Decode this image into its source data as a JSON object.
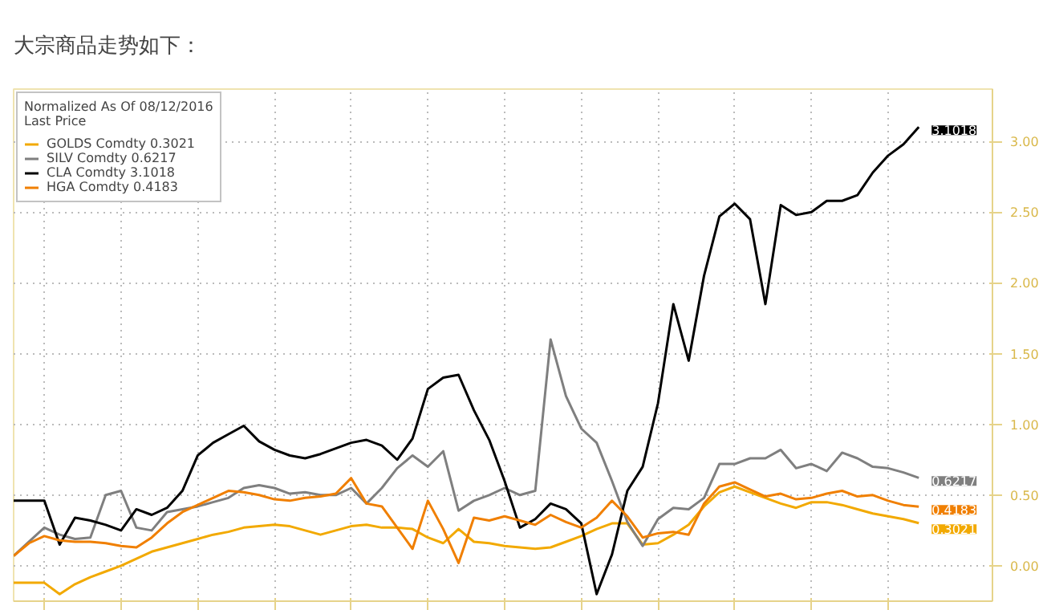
{
  "chart_data": {
    "type": "line",
    "title": "大宗商品走势如下：",
    "legend_title": "Normalized As Of 08/12/2016\nLast Price",
    "legend": "top left",
    "grid": true,
    "tick_labels": "y",
    "line_style": "solid",
    "categories": [
      null,
      null,
      null,
      null,
      null,
      null,
      null,
      null,
      null,
      null,
      null,
      null,
      null,
      null,
      null,
      null,
      null,
      null,
      null,
      null,
      null,
      null,
      null,
      null,
      null,
      null,
      null,
      null,
      null,
      null,
      null,
      null,
      null,
      null,
      null,
      null,
      null,
      null,
      null,
      null,
      null,
      null,
      null,
      null,
      null,
      null,
      null,
      null,
      null,
      null,
      null,
      null,
      null,
      null,
      null,
      null,
      null,
      null,
      null,
      null
    ],
    "ylim": [
      -0.25,
      3.37
    ],
    "yticks": [
      "0.00",
      "0.50",
      "1.00",
      "1.50",
      "2.00",
      "2.50",
      "3.00"
    ],
    "series": [
      {
        "name": "GOLDS Comdty 0.3021",
        "color": "#f2a900",
        "values": [
          -0.12,
          -0.12,
          -0.12,
          -0.2,
          -0.13,
          -0.08,
          -0.04,
          0.0,
          0.05,
          0.1,
          0.13,
          0.16,
          0.19,
          0.22,
          0.24,
          0.27,
          0.28,
          0.29,
          0.28,
          0.25,
          0.22,
          0.25,
          0.28,
          0.29,
          0.27,
          0.27,
          0.26,
          0.2,
          0.16,
          0.26,
          0.17,
          0.16,
          0.14,
          0.13,
          0.12,
          0.13,
          0.17,
          0.21,
          0.26,
          0.3,
          0.3,
          0.15,
          0.16,
          0.22,
          0.29,
          0.42,
          0.52,
          0.56,
          0.52,
          0.48,
          0.44,
          0.41,
          0.45,
          0.45,
          0.43,
          0.4,
          0.37,
          0.35,
          0.33,
          0.3021
        ],
        "value_labels": [
          null,
          null,
          null,
          null,
          null,
          null,
          null,
          null,
          null,
          null,
          null,
          null,
          null,
          null,
          null,
          null,
          null,
          null,
          null,
          null,
          null,
          null,
          null,
          null,
          null,
          null,
          null,
          null,
          null,
          null,
          null,
          null,
          null,
          null,
          null,
          null,
          null,
          null,
          null,
          null,
          null,
          null,
          null,
          null,
          null,
          null,
          null,
          null,
          null,
          null,
          null,
          null,
          null,
          null,
          null,
          null,
          null,
          null,
          null,
          "0.3021"
        ]
      },
      {
        "name": "SILV Comdty 0.6217",
        "color": "#7f7f7f",
        "values": [
          0.07,
          0.17,
          0.27,
          0.22,
          0.19,
          0.2,
          0.5,
          0.53,
          0.27,
          0.25,
          0.38,
          0.4,
          0.42,
          0.45,
          0.48,
          0.55,
          0.57,
          0.55,
          0.51,
          0.52,
          0.5,
          0.5,
          0.55,
          0.44,
          0.55,
          0.69,
          0.78,
          0.7,
          0.81,
          0.39,
          0.46,
          0.5,
          0.55,
          0.5,
          0.53,
          1.6,
          1.2,
          0.97,
          0.87,
          0.6,
          0.31,
          0.14,
          0.33,
          0.41,
          0.4,
          0.48,
          0.72,
          0.72,
          0.76,
          0.76,
          0.82,
          0.69,
          0.72,
          0.67,
          0.8,
          0.76,
          0.7,
          0.69,
          0.66,
          0.6217
        ],
        "value_labels": [
          null,
          null,
          null,
          null,
          null,
          null,
          null,
          null,
          null,
          null,
          null,
          null,
          null,
          null,
          null,
          null,
          null,
          null,
          null,
          null,
          null,
          null,
          null,
          null,
          null,
          null,
          null,
          null,
          null,
          null,
          null,
          null,
          null,
          null,
          null,
          null,
          null,
          null,
          null,
          null,
          null,
          null,
          null,
          null,
          null,
          null,
          null,
          null,
          null,
          null,
          null,
          null,
          null,
          null,
          null,
          null,
          null,
          null,
          null,
          "0.6217"
        ]
      },
      {
        "name": "CLA Comdty 3.1018",
        "color": "#000000",
        "values": [
          0.46,
          0.46,
          0.46,
          0.15,
          0.34,
          0.32,
          0.29,
          0.25,
          0.4,
          0.36,
          0.41,
          0.53,
          0.78,
          0.87,
          0.93,
          0.99,
          0.88,
          0.82,
          0.78,
          0.76,
          0.79,
          0.83,
          0.87,
          0.89,
          0.85,
          0.75,
          0.9,
          1.25,
          1.33,
          1.35,
          1.1,
          0.89,
          0.6,
          0.27,
          0.33,
          0.44,
          0.4,
          0.3,
          -0.2,
          0.08,
          0.53,
          0.7,
          1.15,
          1.85,
          1.45,
          2.05,
          2.47,
          2.56,
          2.45,
          1.85,
          2.55,
          2.48,
          2.5,
          2.58,
          2.58,
          2.62,
          2.78,
          2.9,
          2.98,
          3.1018
        ],
        "value_labels": [
          null,
          null,
          null,
          null,
          null,
          null,
          null,
          null,
          null,
          null,
          null,
          null,
          null,
          null,
          null,
          null,
          null,
          null,
          null,
          null,
          null,
          null,
          null,
          null,
          null,
          null,
          null,
          null,
          null,
          null,
          null,
          null,
          null,
          null,
          null,
          null,
          null,
          null,
          null,
          null,
          null,
          null,
          null,
          null,
          null,
          null,
          null,
          null,
          null,
          null,
          null,
          null,
          null,
          null,
          null,
          null,
          null,
          null,
          null,
          "3.1018"
        ]
      },
      {
        "name": "HGA Comdty 0.4183",
        "color": "#f07f00",
        "values": [
          0.07,
          0.16,
          0.21,
          0.18,
          0.17,
          0.17,
          0.16,
          0.14,
          0.13,
          0.2,
          0.3,
          0.38,
          0.43,
          0.48,
          0.53,
          0.52,
          0.5,
          0.47,
          0.46,
          0.48,
          0.49,
          0.51,
          0.62,
          0.44,
          0.42,
          0.27,
          0.12,
          0.46,
          0.26,
          0.02,
          0.34,
          0.32,
          0.35,
          0.32,
          0.29,
          0.36,
          0.31,
          0.27,
          0.34,
          0.46,
          0.35,
          0.2,
          0.23,
          0.24,
          0.22,
          0.44,
          0.56,
          0.59,
          0.54,
          0.49,
          0.51,
          0.47,
          0.48,
          0.51,
          0.53,
          0.49,
          0.5,
          0.46,
          0.43,
          0.4183
        ],
        "value_labels": [
          null,
          null,
          null,
          null,
          null,
          null,
          null,
          null,
          null,
          null,
          null,
          null,
          null,
          null,
          null,
          null,
          null,
          null,
          null,
          null,
          null,
          null,
          null,
          null,
          null,
          null,
          null,
          null,
          null,
          null,
          null,
          null,
          null,
          null,
          null,
          null,
          null,
          null,
          null,
          null,
          null,
          null,
          null,
          null,
          null,
          null,
          null,
          null,
          null,
          null,
          null,
          null,
          null,
          null,
          null,
          null,
          null,
          null,
          null,
          "0.4183"
        ]
      }
    ]
  }
}
